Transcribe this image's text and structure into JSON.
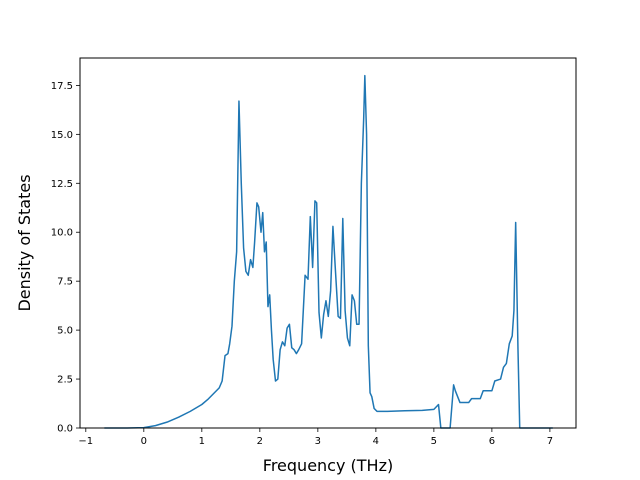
{
  "chart_data": {
    "type": "line",
    "title": "",
    "xlabel": "Frequency (THz)",
    "ylabel": "Density of States",
    "xlim": [
      -1.1,
      7.45
    ],
    "ylim": [
      0,
      18.9
    ],
    "xticks": [
      -1,
      0,
      1,
      2,
      3,
      4,
      5,
      6,
      7
    ],
    "yticks": [
      0.0,
      2.5,
      5.0,
      7.5,
      10.0,
      12.5,
      15.0,
      17.5
    ],
    "xtick_labels": [
      "−1",
      "0",
      "1",
      "2",
      "3",
      "4",
      "5",
      "6",
      "7"
    ],
    "ytick_labels": [
      "0.0",
      "2.5",
      "5.0",
      "7.5",
      "10.0",
      "12.5",
      "15.0",
      "17.5"
    ],
    "grid": false,
    "line_color": "#1f77b4",
    "series": [
      {
        "x": [
          -0.68,
          -0.3,
          0.0,
          0.2,
          0.4,
          0.6,
          0.8,
          1.0,
          1.1,
          1.2,
          1.3,
          1.35,
          1.4,
          1.45,
          1.48,
          1.52,
          1.56,
          1.6,
          1.64,
          1.68,
          1.72,
          1.76,
          1.8,
          1.84,
          1.88,
          1.91,
          1.95,
          1.98,
          2.02,
          2.05,
          2.08,
          2.11,
          2.14,
          2.17,
          2.2,
          2.23,
          2.27,
          2.31,
          2.35,
          2.39,
          2.43,
          2.47,
          2.51,
          2.55,
          2.59,
          2.63,
          2.67,
          2.72,
          2.78,
          2.83,
          2.87,
          2.91,
          2.95,
          2.98,
          3.02,
          3.06,
          3.1,
          3.14,
          3.18,
          3.22,
          3.26,
          3.3,
          3.35,
          3.39,
          3.43,
          3.47,
          3.51,
          3.55,
          3.59,
          3.63,
          3.67,
          3.71,
          3.75,
          3.79,
          3.81,
          3.84,
          3.87,
          3.9,
          3.93,
          3.97,
          4.02,
          4.07,
          4.2,
          4.5,
          4.8,
          5.0,
          5.08,
          5.12,
          5.28,
          5.34,
          5.37,
          5.45,
          5.6,
          5.65,
          5.8,
          5.85,
          6.0,
          6.05,
          6.15,
          6.2,
          6.25,
          6.3,
          6.35,
          6.38,
          6.41,
          6.45,
          6.48,
          6.55,
          7.05
        ],
        "y": [
          0.0,
          0.0,
          0.02,
          0.12,
          0.3,
          0.55,
          0.85,
          1.2,
          1.45,
          1.75,
          2.05,
          2.4,
          3.7,
          3.8,
          4.3,
          5.2,
          7.5,
          9.0,
          16.7,
          12.5,
          9.2,
          8.0,
          7.8,
          8.6,
          8.2,
          9.5,
          11.5,
          11.3,
          10.0,
          11.0,
          9.0,
          9.5,
          6.2,
          6.8,
          5.0,
          3.5,
          2.4,
          2.5,
          4.0,
          4.4,
          4.2,
          5.1,
          5.3,
          4.1,
          4.0,
          3.8,
          4.0,
          4.3,
          7.8,
          7.6,
          10.8,
          8.2,
          11.6,
          11.5,
          5.9,
          4.6,
          5.8,
          6.5,
          5.7,
          7.0,
          10.3,
          8.2,
          5.7,
          5.6,
          10.7,
          6.0,
          4.6,
          4.2,
          6.8,
          6.5,
          5.3,
          5.3,
          12.5,
          15.8,
          18.0,
          15.0,
          4.2,
          1.8,
          1.6,
          1.0,
          0.85,
          0.85,
          0.85,
          0.88,
          0.9,
          0.95,
          1.2,
          0.0,
          0.0,
          2.2,
          1.9,
          1.3,
          1.3,
          1.5,
          1.5,
          1.9,
          1.9,
          2.4,
          2.5,
          3.1,
          3.3,
          4.3,
          4.7,
          6.0,
          10.5,
          4.0,
          0.0,
          0.0,
          0.0
        ]
      }
    ]
  }
}
